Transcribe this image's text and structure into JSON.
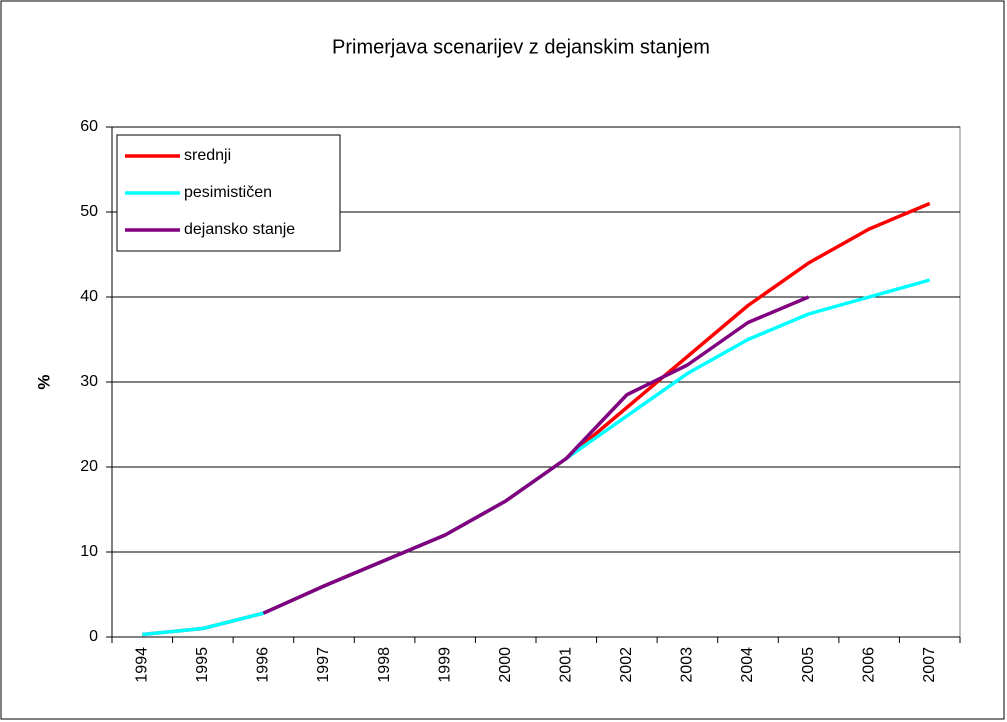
{
  "chart_data": {
    "type": "line",
    "title": "Primerjava scenarijev z dejanskim stanjem",
    "y_label": "%",
    "categories": [
      "1994",
      "1995",
      "1996",
      "1997",
      "1998",
      "1999",
      "2000",
      "2001",
      "2002",
      "2003",
      "2004",
      "2005",
      "2006",
      "2007"
    ],
    "series": [
      {
        "name": "srednji",
        "color": "#ff0000",
        "values": [
          0.3,
          1,
          2.8,
          6,
          9,
          12,
          16,
          21,
          27,
          33,
          39,
          44,
          48,
          51
        ]
      },
      {
        "name": "pesimističen",
        "color": "#00ffff",
        "values": [
          0.3,
          1,
          2.8,
          6,
          9,
          12,
          16,
          21,
          26,
          31,
          35,
          38,
          40,
          42
        ]
      },
      {
        "name": "dejansko stanje",
        "color": "#800080",
        "values": [
          null,
          null,
          2.8,
          6,
          9,
          12,
          16,
          21,
          28.5,
          32,
          37,
          40,
          null,
          null
        ]
      }
    ],
    "ylim": [
      0,
      60
    ],
    "yticks": [
      0,
      10,
      20,
      30,
      40,
      50,
      60
    ],
    "grid": true,
    "legend": "top-left"
  }
}
